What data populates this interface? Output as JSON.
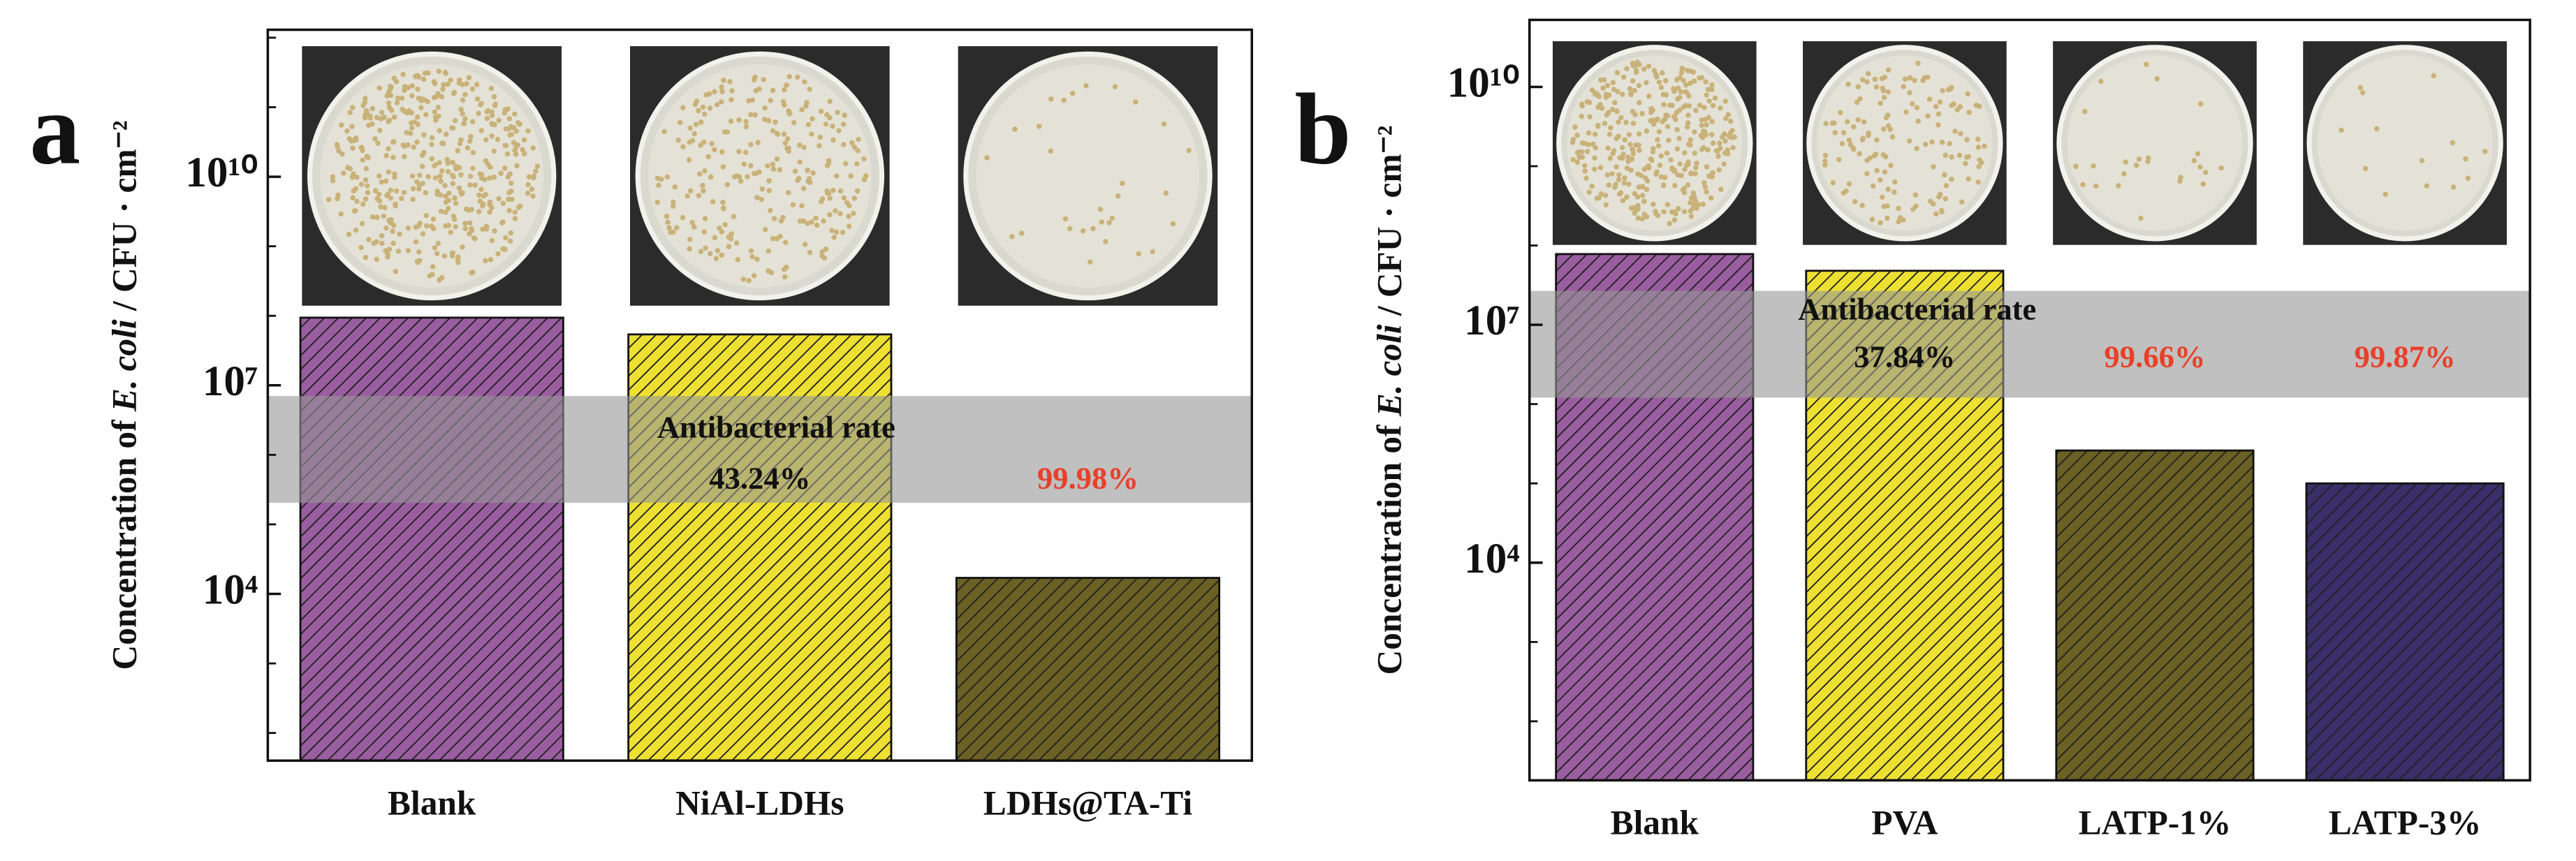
{
  "chart_data": [
    {
      "type": "bar",
      "panel": "a",
      "y_label_parts": [
        "Concentration of ",
        "E. coli",
        " / CFU · cm⁻²"
      ],
      "categories": [
        "Blank",
        "NiAl-LDHs",
        "LDHs@TA-Ti"
      ],
      "values": [
        94000000,
        54000000,
        17000.0
      ],
      "colors": [
        "#9a5ea0",
        "#eee033",
        "#6b6124"
      ],
      "log_y": true,
      "ylim": [
        40,
        1300000000000
      ],
      "yticks": [
        {
          "value": 10000,
          "label": "10⁴"
        },
        {
          "value": 10000000,
          "label": "10⁷"
        },
        {
          "value": 10000000000,
          "label": "10¹⁰"
        }
      ],
      "minor_yticks": [
        100,
        1000,
        100000,
        1000000,
        100000000,
        1000000000,
        100000000000,
        1000000000000
      ],
      "band_label": "Antibacterial rate",
      "rate_labels": [
        null,
        "43.24%",
        "99.98%"
      ],
      "rate_colors": [
        null,
        "#111111",
        "#e8402a"
      ]
    },
    {
      "type": "bar",
      "panel": "b",
      "y_label_parts": [
        "Concentration of ",
        "E. coli",
        " / CFU · cm⁻²"
      ],
      "categories": [
        "Blank",
        "PVA",
        "LATP-1%",
        "LATP-3%"
      ],
      "values": [
        78000000,
        48000000,
        260000,
        100000
      ],
      "colors": [
        "#9a5ea0",
        "#eee033",
        "#6b6124",
        "#3a2f6a"
      ],
      "log_y": true,
      "ylim": [
        18,
        70000000000
      ],
      "yticks": [
        {
          "value": 10000,
          "label": "10⁴"
        },
        {
          "value": 10000000,
          "label": "10⁷"
        },
        {
          "value": 10000000000,
          "label": "10¹⁰"
        }
      ],
      "minor_yticks": [
        100,
        1000,
        100000,
        1000000,
        100000000,
        1000000000
      ],
      "band_label": "Antibacterial rate",
      "rate_labels": [
        null,
        "37.84%",
        "99.66%",
        "99.87%"
      ],
      "rate_colors": [
        null,
        "#111111",
        "#e8402a",
        "#e8402a"
      ]
    }
  ]
}
